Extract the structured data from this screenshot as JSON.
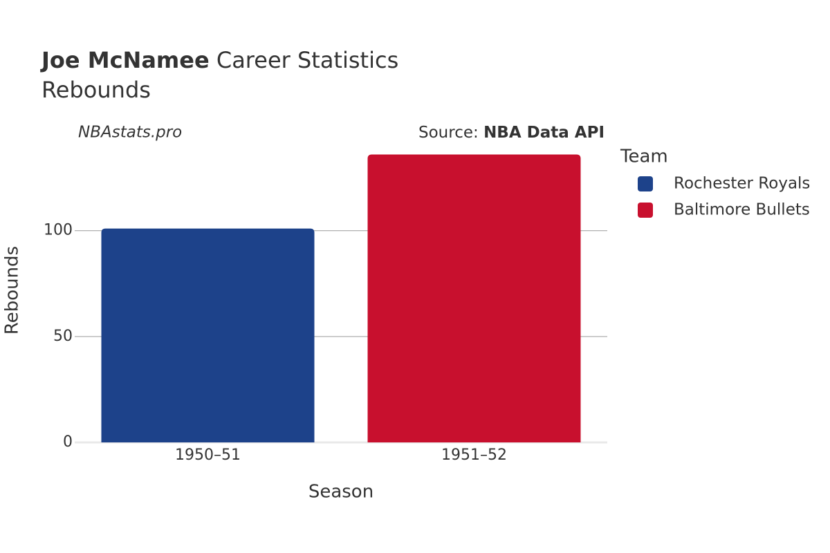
{
  "chart_data": {
    "type": "bar",
    "title_name": "Joe McNamee",
    "title_text": "Career Statistics",
    "subtitle": "Rebounds",
    "watermark": "NBAstats.pro",
    "source_label": "Source:",
    "source_name": "NBA Data API",
    "x_label": "Season",
    "y_label": "Rebounds",
    "legend_title": "Team",
    "categories": [
      "1950–51",
      "1951–52"
    ],
    "series": [
      {
        "name": "Rochester Royals",
        "color": "#1d428a",
        "values": [
          101,
          null
        ]
      },
      {
        "name": "Baltimore Bullets",
        "color": "#c8102e",
        "values": [
          null,
          136
        ]
      }
    ],
    "ylim": [
      0,
      143
    ],
    "yticks": [
      0,
      50,
      100
    ],
    "grid": true
  }
}
